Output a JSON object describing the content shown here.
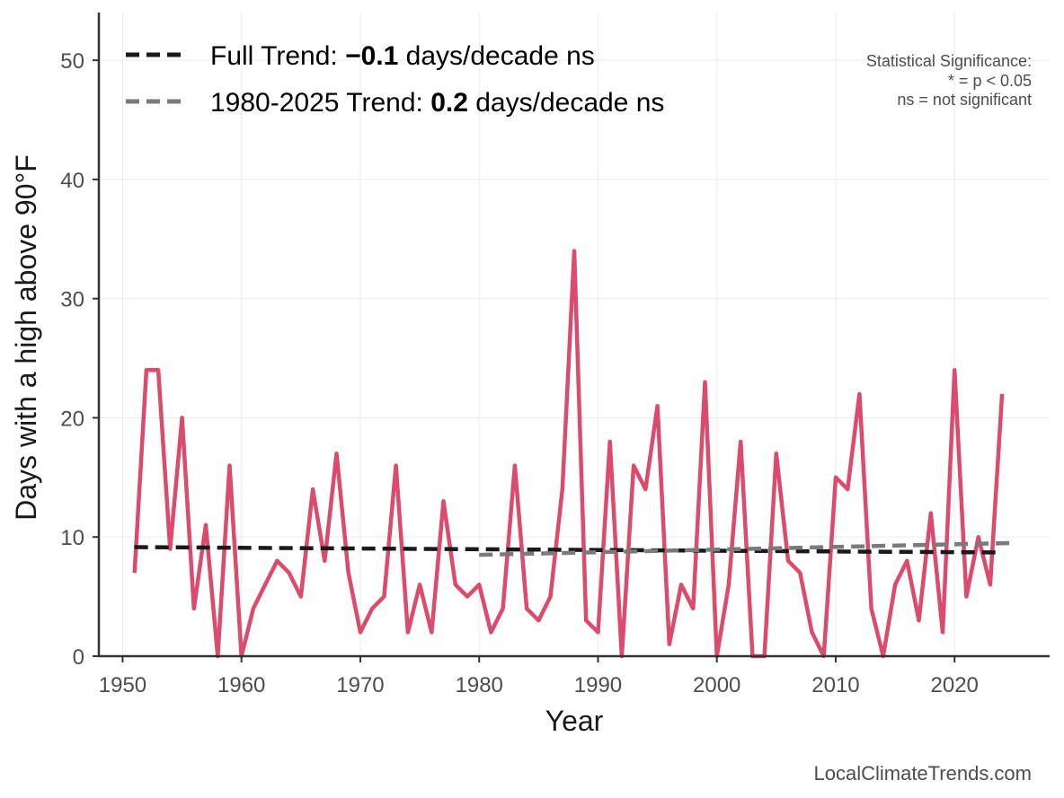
{
  "chart_data": {
    "type": "line",
    "title": "",
    "xlabel": "Year",
    "ylabel": "Days with a high above 90°F",
    "xlim": [
      1948,
      2028
    ],
    "ylim": [
      0,
      54
    ],
    "xticks": [
      1950,
      1960,
      1970,
      1980,
      1990,
      2000,
      2010,
      2020
    ],
    "yticks": [
      0,
      10,
      20,
      30,
      40,
      50
    ],
    "grid": true,
    "series": [
      {
        "name": "Days with a high above 90°F",
        "color": "#dc4a6c",
        "x": [
          1951,
          1952,
          1953,
          1954,
          1955,
          1956,
          1957,
          1958,
          1959,
          1960,
          1961,
          1962,
          1963,
          1964,
          1965,
          1966,
          1967,
          1968,
          1969,
          1970,
          1971,
          1972,
          1973,
          1974,
          1975,
          1976,
          1977,
          1978,
          1979,
          1980,
          1981,
          1982,
          1983,
          1984,
          1985,
          1986,
          1987,
          1988,
          1989,
          1990,
          1991,
          1992,
          1993,
          1994,
          1995,
          1996,
          1997,
          1998,
          1999,
          2000,
          2001,
          2002,
          2003,
          2004,
          2005,
          2006,
          2007,
          2008,
          2009,
          2010,
          2011,
          2012,
          2013,
          2014,
          2015,
          2016,
          2017,
          2018,
          2019,
          2020,
          2021,
          2022,
          2023,
          2024
        ],
        "values": [
          7,
          24,
          24,
          9,
          20,
          4,
          11,
          0,
          16,
          0,
          4,
          6,
          8,
          7,
          5,
          14,
          8,
          17,
          7,
          2,
          4,
          5,
          16,
          2,
          6,
          2,
          13,
          6,
          5,
          6,
          2,
          4,
          16,
          4,
          3,
          5,
          14,
          34,
          3,
          2,
          18,
          0,
          16,
          14,
          21,
          1,
          6,
          4,
          23,
          0,
          6,
          18,
          0,
          0,
          17,
          8,
          7,
          2,
          0,
          15,
          14,
          22,
          4,
          0,
          6,
          8,
          3,
          12,
          2,
          24,
          5,
          10,
          6,
          22
        ]
      }
    ],
    "trends": [
      {
        "name": "Full Trend",
        "color": "#1a1a1a",
        "x": [
          1951,
          2024
        ],
        "values": [
          9.15,
          8.7
        ]
      },
      {
        "name": "1980-2025 Trend",
        "color": "#7a7a7a",
        "x": [
          1980,
          2025
        ],
        "values": [
          8.5,
          9.5
        ]
      }
    ]
  },
  "legend": {
    "position": "top-left",
    "items": [
      {
        "prefix": "Full Trend: ",
        "value": "−0.1",
        "suffix": " days/decade ns"
      },
      {
        "prefix": "1980-2025 Trend: ",
        "value": "0.2",
        "suffix": " days/decade ns"
      }
    ]
  },
  "significance_note": {
    "line1": "Statistical Significance:",
    "line2": "* = p < 0.05",
    "line3": "ns = not significant"
  },
  "credit": "LocalClimateTrends.com"
}
